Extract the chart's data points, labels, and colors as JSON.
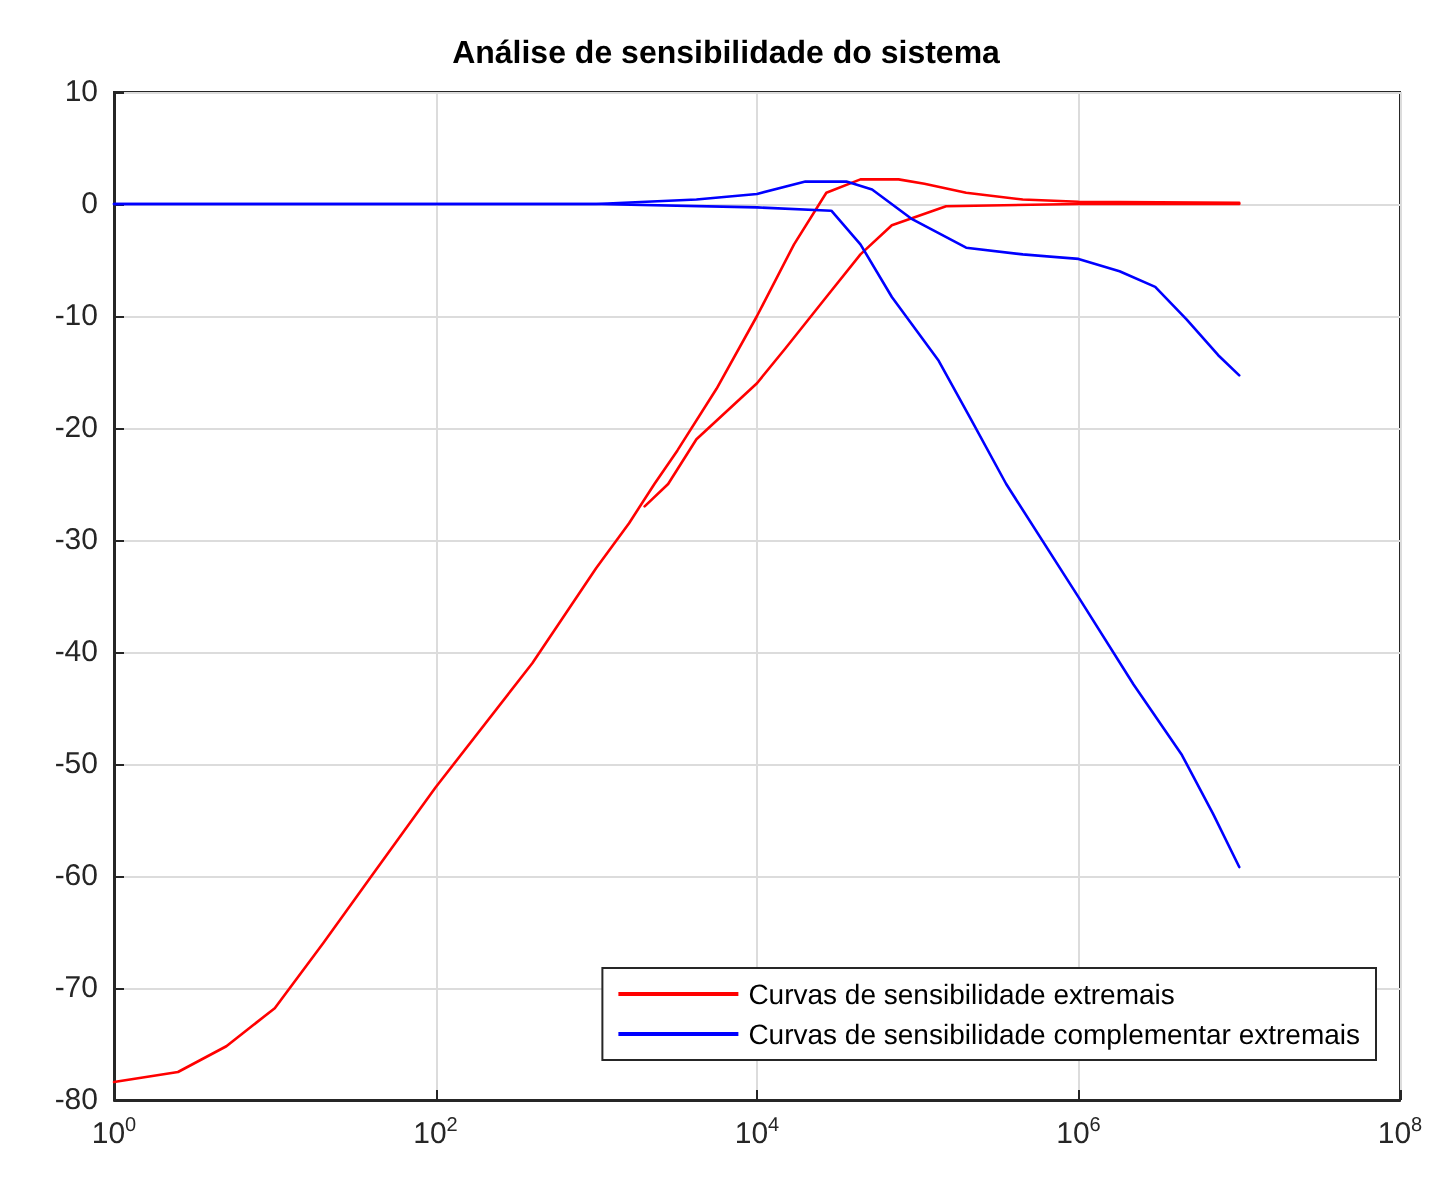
{
  "chart_data": {
    "type": "line",
    "title": "Análise de sensibilidade do sistema",
    "log": "x",
    "grid": true,
    "legend": "bottom right",
    "line_style": "solid",
    "marker": "none",
    "xlim": [
      1,
      100000000
    ],
    "xticks": [
      {
        "value": 1,
        "label": "10$^{0}$"
      },
      {
        "value": 100,
        "label": "10$^{2}$"
      },
      {
        "value": 10000,
        "label": "10$^{4}$"
      },
      {
        "value": 1000000,
        "label": "10$^{6}$"
      },
      {
        "value": 100000000,
        "label": "10$^{8}$"
      }
    ],
    "ylim": [
      -80,
      10
    ],
    "yticks": [
      -80,
      -70,
      -60,
      -50,
      -40,
      -30,
      -20,
      -10,
      0,
      10
    ],
    "series": [
      {
        "name": "Curvas de sensibilidade extremais",
        "color": "#ff0000",
        "x": [
          1,
          2.5,
          5,
          10,
          20,
          40,
          100,
          400,
          1000,
          1600,
          2300,
          3200,
          5600,
          10000,
          17000,
          27000,
          44000,
          76000,
          110000,
          200000,
          450000,
          1000000,
          10000000
        ],
        "values": [
          -78.4,
          -77.5,
          -75.2,
          -71.8,
          -66,
          -60,
          -52.1,
          -41,
          -32.5,
          -28.5,
          -25,
          -22,
          -16.5,
          -10,
          -3.6,
          1,
          2.2,
          2.2,
          1.8,
          1,
          0.4,
          0.2,
          0.1
        ]
      },
      {
        "color": "#ff0000",
        "x": [
          2000,
          2800,
          4200,
          10000,
          15000,
          27000,
          44000,
          69000,
          150000,
          1000000,
          10000000
        ],
        "values": [
          -27,
          -25,
          -21,
          -16,
          -12.9,
          -8.3,
          -4.5,
          -1.9,
          -0.2,
          0,
          0
        ]
      },
      {
        "name": "Curvas de sensibilidade complementar extremais",
        "color": "#0000ff",
        "x": [
          1,
          1000,
          4200,
          10000,
          20000,
          36000,
          52000,
          91000,
          200000,
          450000,
          1000000,
          1800000,
          3000000,
          4700000,
          7400000,
          10000000
        ],
        "values": [
          0,
          0,
          0.4,
          0.9,
          2,
          2,
          1.3,
          -1.3,
          -3.9,
          -4.5,
          -4.9,
          -6,
          -7.4,
          -10.3,
          -13.5,
          -15.3
        ]
      },
      {
        "color": "#0000ff",
        "x": [
          1,
          1000,
          10000,
          29000,
          44000,
          69000,
          135000,
          214000,
          355000,
          1000000,
          2200000,
          4400000,
          6900000,
          10000000
        ],
        "values": [
          0,
          0,
          -0.3,
          -0.6,
          -3.6,
          -8.3,
          -14,
          -19.2,
          -25,
          -35.1,
          -42.9,
          -49.2,
          -54.5,
          -59.2
        ]
      }
    ]
  }
}
